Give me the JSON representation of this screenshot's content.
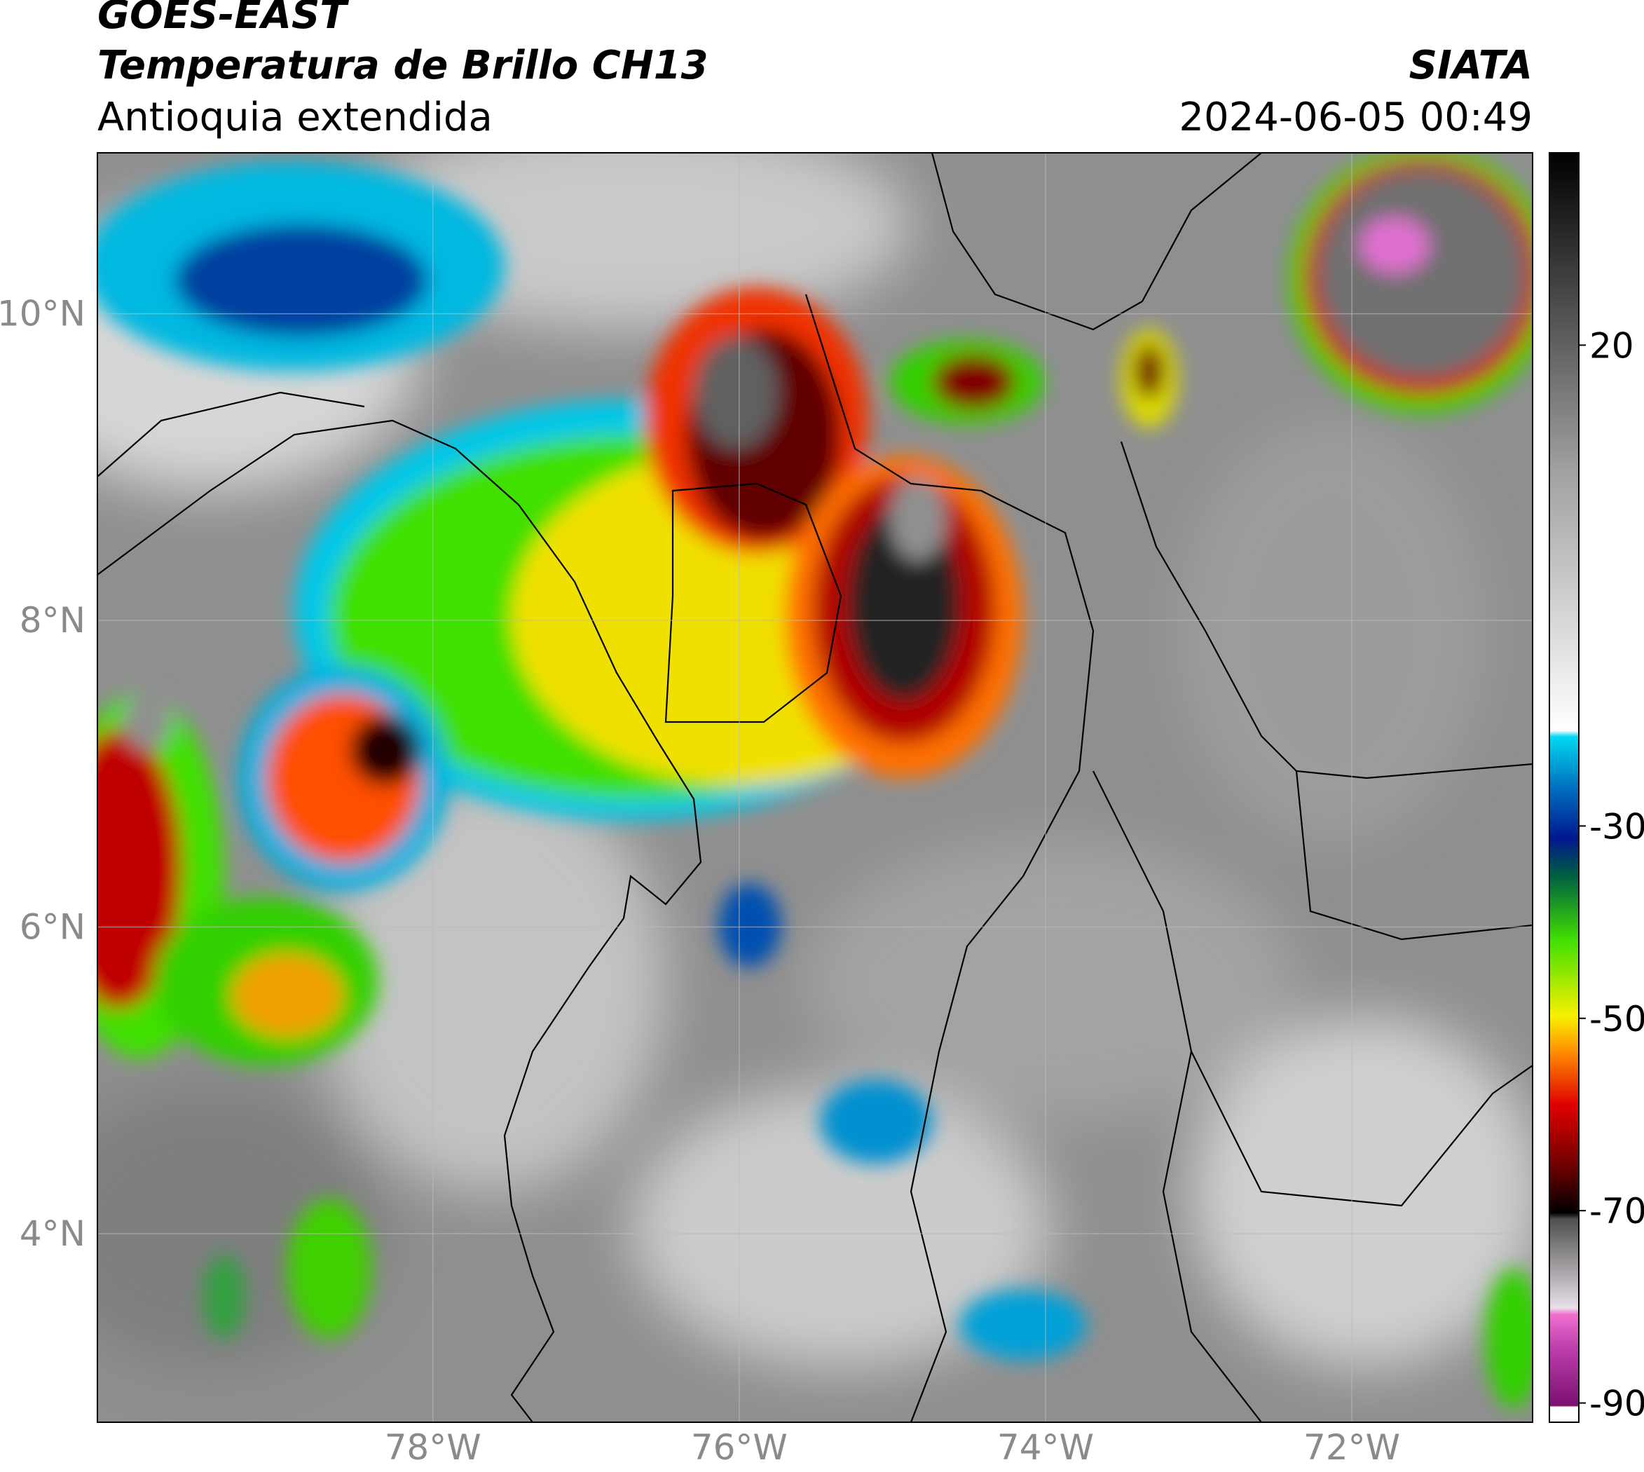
{
  "header": {
    "satellite": "GOES-EAST",
    "product": "Temperatura de Brillo CH13",
    "region": "Antioquia extendida",
    "institution": "SIATA",
    "datetime": "2024-06-05 00:49"
  },
  "map": {
    "xlim": [
      -80.19,
      -70.82
    ],
    "ylim": [
      2.77,
      11.05
    ],
    "xticks": [
      {
        "value": -78,
        "label": "78°W"
      },
      {
        "value": -76,
        "label": "76°W"
      },
      {
        "value": -74,
        "label": "74°W"
      },
      {
        "value": -72,
        "label": "72°W"
      }
    ],
    "yticks": [
      {
        "value": 10,
        "label": "10°N"
      },
      {
        "value": 8,
        "label": "8°N"
      },
      {
        "value": 6,
        "label": "6°N"
      },
      {
        "value": 4,
        "label": "4°N"
      }
    ],
    "grid": true
  },
  "colorbar": {
    "lim": [
      -92,
      40
    ],
    "ticks": [
      20,
      -30,
      -50,
      -70,
      -90
    ]
  }
}
